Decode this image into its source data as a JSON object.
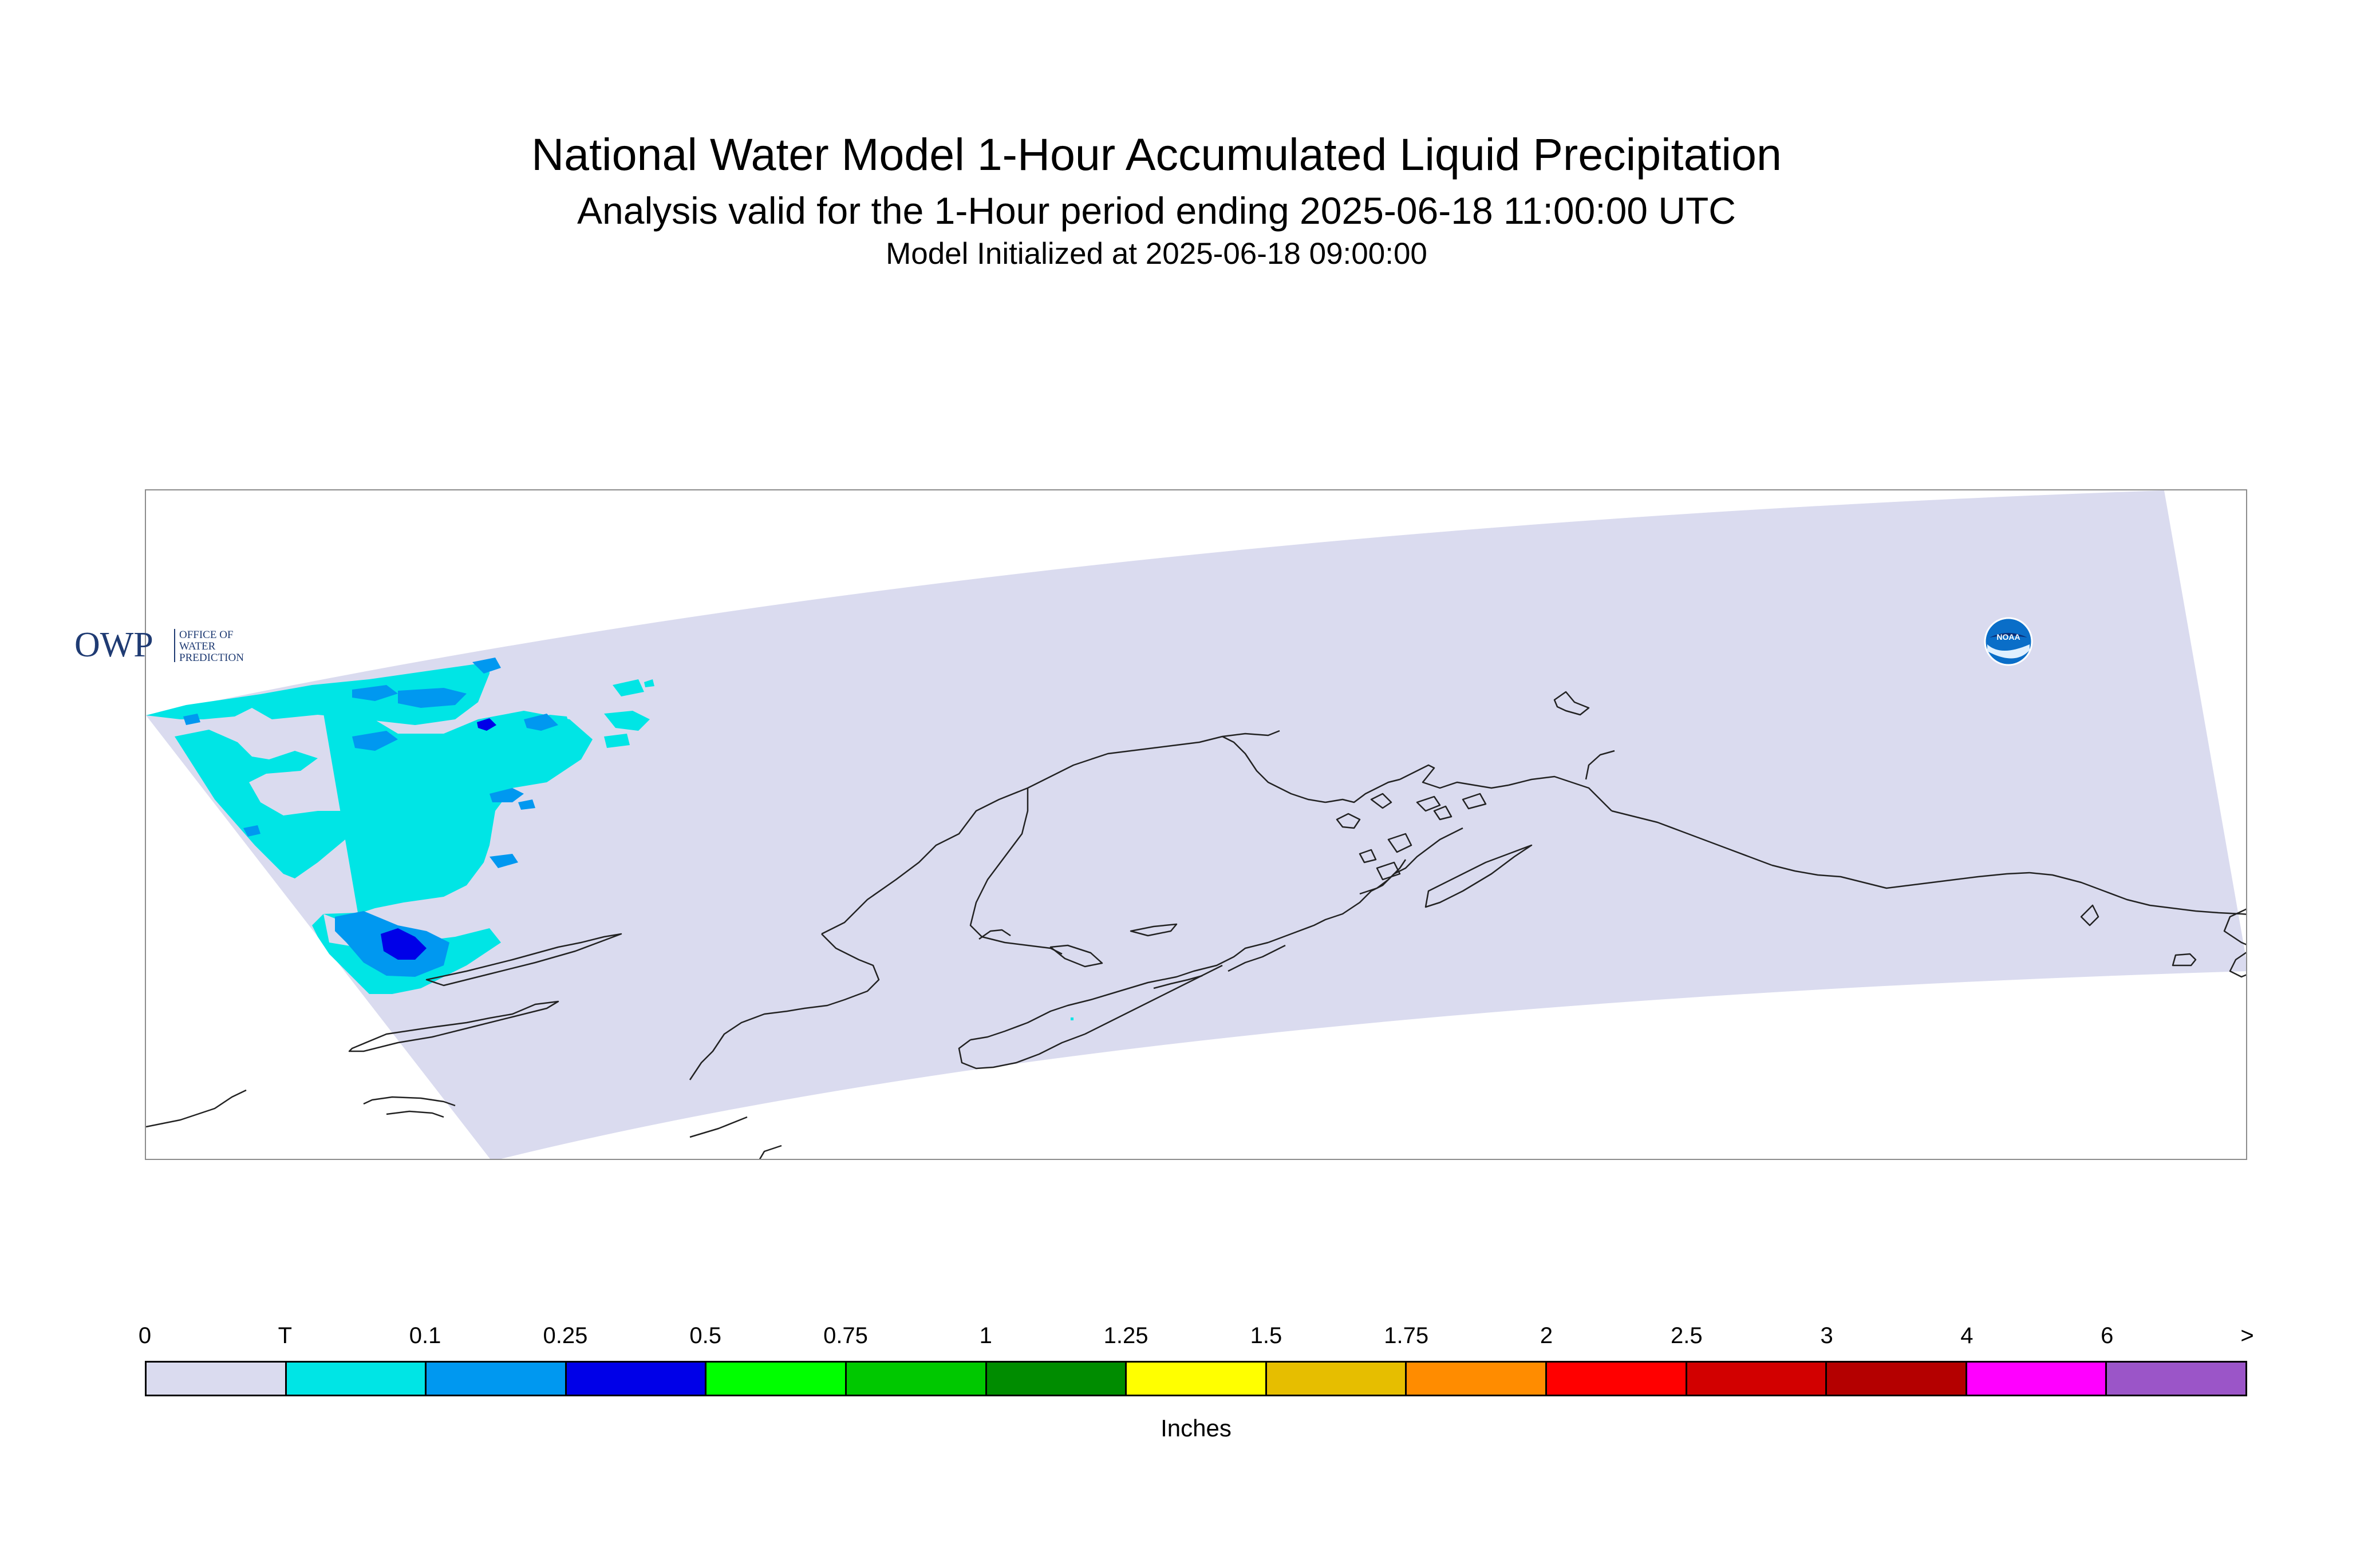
{
  "title": "National Water Model 1-Hour Accumulated Liquid Precipitation",
  "subtitle": "Analysis valid for the 1-Hour period ending 2025-06-18 11:00:00 UTC",
  "init_line": "Model Initialized at 2025-06-18 09:00:00",
  "map": {
    "domain_fill": "#dadbef",
    "coastline_color": "#222222",
    "precip_colors": {
      "trace": "#00e5e5",
      "p10": "#0098f0",
      "p25": "#0000e8"
    }
  },
  "owp_logo": {
    "letters": "OWP",
    "text_lines": [
      "OFFICE OF",
      "WATER",
      "PREDICTION"
    ],
    "color": "#1f3b73"
  },
  "noaa_logo": {
    "text": "NOAA",
    "icon": "noaa-seal-icon"
  },
  "legend": {
    "tick_labels": [
      "0",
      "T",
      "0.1",
      "0.25",
      "0.5",
      "0.75",
      "1",
      "1.25",
      "1.5",
      "1.75",
      "2",
      "2.5",
      "3",
      "4",
      "6",
      ">"
    ],
    "colors": [
      "#dadbef",
      "#00e5e5",
      "#0098f0",
      "#0000e8",
      "#00ff00",
      "#00c800",
      "#008c00",
      "#ffff00",
      "#e6be00",
      "#ff8c00",
      "#ff0000",
      "#d20000",
      "#b40000",
      "#ff00ff",
      "#9b55c8"
    ],
    "units": "Inches"
  }
}
